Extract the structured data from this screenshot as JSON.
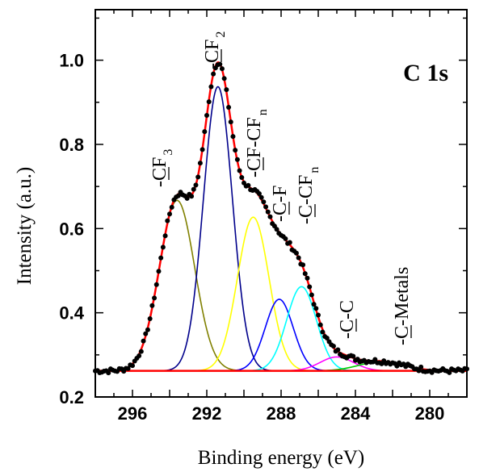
{
  "chart_data": {
    "type": "line",
    "xlabel": "Binding energy (eV)",
    "ylabel": "Intensity (a.u.)",
    "annotation": "C 1s",
    "xlim": [
      298,
      278
    ],
    "ylim": [
      0.2,
      1.12
    ],
    "x_reversed": true,
    "x_ticks": [
      "296",
      "292",
      "288",
      "284",
      "280"
    ],
    "y_ticks": [
      "0.2",
      "0.4",
      "0.6",
      "0.8",
      "1.0"
    ],
    "background": 0.262,
    "components": [
      {
        "label": "-CF3",
        "label_parts": [
          "-C",
          "F",
          "3"
        ],
        "center": 293.6,
        "height": 0.405,
        "sigma": 0.95,
        "color": "#808000"
      },
      {
        "label": "-CF2",
        "label_parts": [
          "-C",
          "F",
          "2"
        ],
        "center": 291.4,
        "height": 0.675,
        "sigma": 0.78,
        "color": "#00008b"
      },
      {
        "label": "-CF-CFn",
        "label_parts": [
          "-C",
          "F-CF",
          "n"
        ],
        "center": 289.5,
        "height": 0.365,
        "sigma": 0.85,
        "color": "#ffff00"
      },
      {
        "label": "-C-F",
        "label_parts": [
          "-C",
          "-F",
          ""
        ],
        "center": 288.1,
        "height": 0.17,
        "sigma": 0.75,
        "color": "#0000ff"
      },
      {
        "label": "-C-CFn",
        "label_parts": [
          "-C",
          "-CF",
          "n"
        ],
        "center": 286.9,
        "height": 0.2,
        "sigma": 0.8,
        "color": "#00ffff"
      },
      {
        "label": "-C-C",
        "label_parts": [
          "-C",
          "-C",
          ""
        ],
        "center": 285.0,
        "height": 0.033,
        "sigma": 0.9,
        "color": "#ff00ff"
      },
      {
        "label": "-C-Metals",
        "label_parts": [
          "-C",
          "-Metals",
          ""
        ],
        "center": 282.6,
        "height": 0.022,
        "sigma": 1.2,
        "color": "#00cc00"
      }
    ],
    "envelope_color": "#ff0000",
    "background_color": "#ff0000",
    "data_points_color": "#000000"
  }
}
